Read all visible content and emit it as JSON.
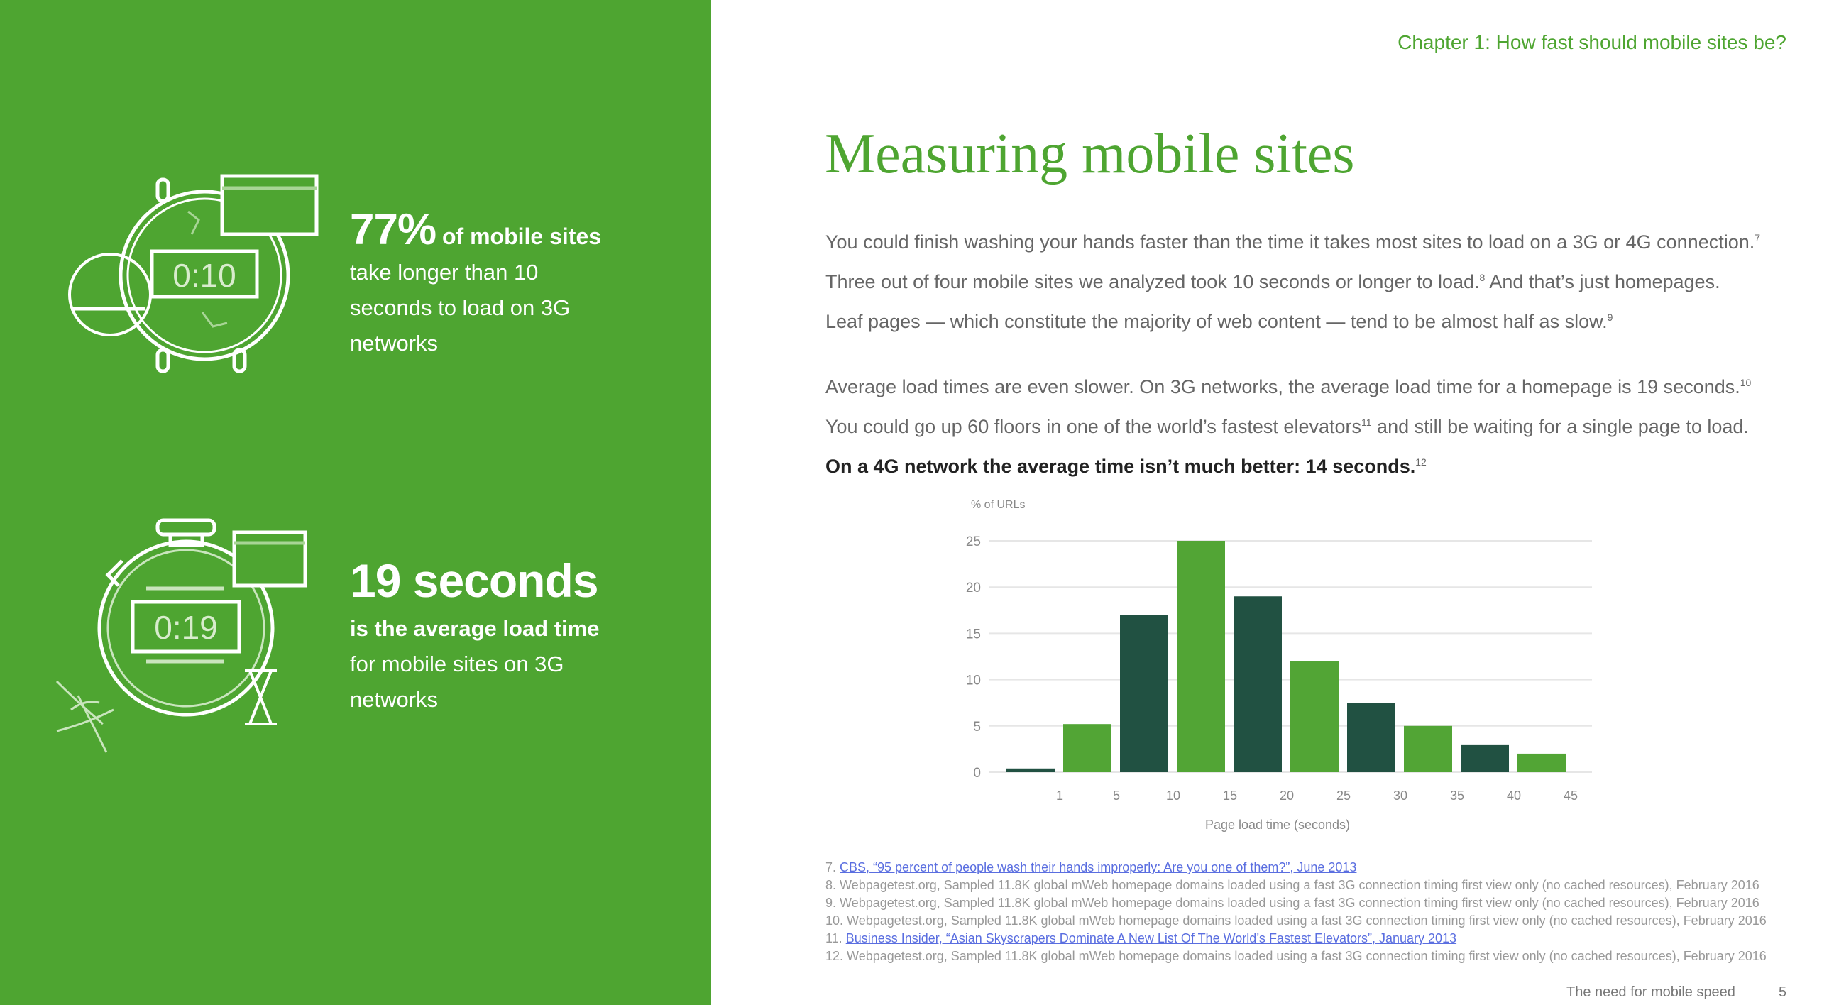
{
  "left_panel": {
    "stat1": {
      "big": "77%",
      "big_suffix": " of mobile sites",
      "lines": [
        "take longer than 10",
        "seconds to load on 3G",
        "networks"
      ],
      "icon_display": "0:10"
    },
    "stat2": {
      "big": "19 seconds",
      "bold_line": "is the average load time",
      "lines": [
        "for mobile sites on 3G",
        "networks"
      ],
      "icon_display": "0:19"
    }
  },
  "header": {
    "chapter": "Chapter 1: How fast should mobile sites be?"
  },
  "title": "Measuring mobile sites",
  "paragraphs": {
    "p1": {
      "a": "You could finish washing your hands faster than the time it takes most sites to load on a 3G or 4G connection.",
      "s1": "7",
      "b": " Three out of four mobile sites we analyzed took 10 seconds or longer to load.",
      "s2": "8",
      "c": " And that’s just homepages. Leaf pages — which constitute the majority of web content — tend to be almost half as slow.",
      "s3": "9"
    },
    "p2": {
      "a": "Average load times are even slower. On 3G networks, the average load time for a homepage is 19 seconds.",
      "s1": "10",
      "b": " You could go up 60 floors in one of the world’s fastest elevators",
      "s2": "11",
      "c": " and still be waiting for a single page to load. ",
      "bold": "On a 4G network the average time isn’t much better: 14 seconds.",
      "s3": "12"
    }
  },
  "chart_data": {
    "type": "bar",
    "ylabel": "% of URLs",
    "xlabel": "Page load time (seconds)",
    "x_tick_labels": [
      "1",
      "5",
      "10",
      "15",
      "20",
      "25",
      "30",
      "35",
      "40",
      "45"
    ],
    "bins": [
      "0-1",
      "1-5",
      "5-10",
      "10-15",
      "15-20",
      "20-25",
      "25-30",
      "30-35",
      "35-40",
      "40-45"
    ],
    "values": [
      0.4,
      5.2,
      17,
      25,
      19,
      12,
      7.5,
      5,
      3,
      2
    ],
    "y_ticks": [
      "0",
      "5",
      "10",
      "15",
      "20",
      "25"
    ],
    "ylim": [
      0,
      25
    ],
    "grid": true,
    "colors": [
      "#215142",
      "#52a535"
    ]
  },
  "footnotes": [
    {
      "num": "7. ",
      "text": "CBS, “95 percent of people wash their hands improperly: Are you one of them?”, June 2013",
      "link": true
    },
    {
      "num": "8. ",
      "text": "Webpagetest.org, Sampled 11.8K global mWeb homepage domains loaded using a fast 3G connection timing first view only (no cached resources), February 2016",
      "link": false
    },
    {
      "num": "9. ",
      "text": "Webpagetest.org, Sampled 11.8K global mWeb homepage domains loaded using a fast 3G connection timing first view only (no cached resources), February 2016",
      "link": false
    },
    {
      "num": "10. ",
      "text": "Webpagetest.org, Sampled 11.8K global mWeb homepage domains loaded using a fast 3G connection timing first view only (no cached resources), February 2016",
      "link": false
    },
    {
      "num": "11. ",
      "text": "Business Insider, “Asian Skyscrapers Dominate A New List Of The World’s Fastest Elevators”, January 2013",
      "link": true
    },
    {
      "num": "12. ",
      "text": "Webpagetest.org, Sampled 11.8K global mWeb homepage domains loaded using a fast 3G connection timing first view only (no cached resources), February 2016",
      "link": false
    }
  ],
  "footer": {
    "text": "The need for mobile speed",
    "page": "5"
  },
  "colors": {
    "green": "#4ea531",
    "dark_green": "#215142"
  }
}
